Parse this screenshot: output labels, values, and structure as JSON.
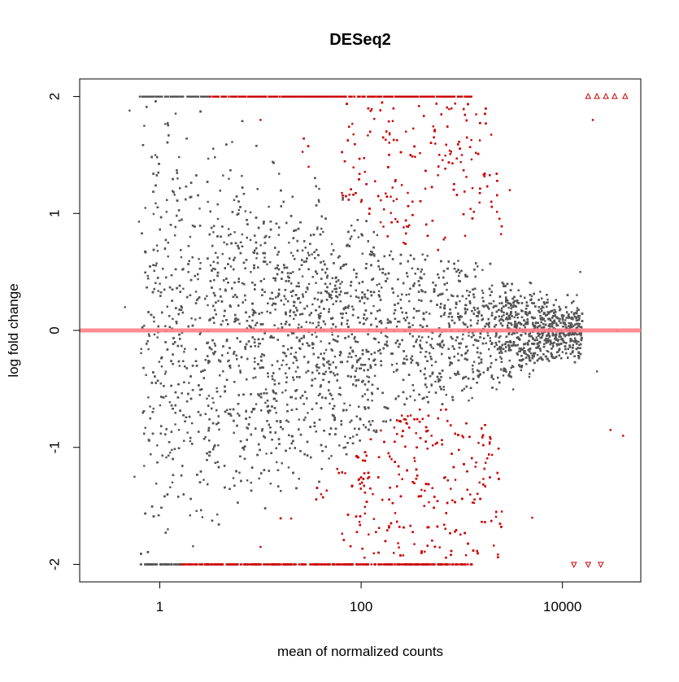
{
  "chart_data": {
    "type": "scatter",
    "title": "DESeq2",
    "xlabel": "mean of normalized counts",
    "ylabel": "log fold change",
    "x_scale": "log10",
    "xlim": [
      0.16,
      60000
    ],
    "ylim": [
      -2.15,
      2.15
    ],
    "x_ticks": [
      {
        "value": 1,
        "label": "1"
      },
      {
        "value": 100,
        "label": "100"
      },
      {
        "value": 10000,
        "label": "10000"
      }
    ],
    "y_ticks": [
      {
        "value": -2,
        "label": "-2"
      },
      {
        "value": -1,
        "label": "-1"
      },
      {
        "value": 0,
        "label": "0"
      },
      {
        "value": 1,
        "label": "1"
      },
      {
        "value": 2,
        "label": "2"
      }
    ],
    "reference_line": {
      "y": 0,
      "color": "#ff7f88"
    },
    "grid": false,
    "legend": "none",
    "colors": {
      "not_significant": "#555555",
      "significant": "#cc0000"
    },
    "series": [
      {
        "values": [
          {
            "x": 0.45,
            "y": 0.2
          },
          {
            "x": 0.5,
            "y": 1.88
          },
          {
            "x": 0.56,
            "y": -1.25
          },
          {
            "x": 0.62,
            "y": 0.93
          },
          {
            "x": 0.7,
            "y": 1.75
          },
          {
            "x": 0.8,
            "y": -0.65
          },
          {
            "x": 0.9,
            "y": 1.5
          },
          {
            "x": 1.0,
            "y": 0.4
          },
          {
            "x": 1.2,
            "y": -1.7
          },
          {
            "x": 1.5,
            "y": 1.3
          },
          {
            "x": 2.0,
            "y": 0.8
          },
          {
            "x": 3.0,
            "y": 1.1
          },
          {
            "x": 5.0,
            "y": -0.3
          },
          {
            "x": 8.0,
            "y": 0.5
          },
          {
            "x": 20.0,
            "y": -0.2
          },
          {
            "x": 50.0,
            "y": 0.3
          },
          {
            "x": 120.0,
            "y": -0.4
          },
          {
            "x": 300.0,
            "y": 0.25
          },
          {
            "x": 700.0,
            "y": -0.55
          },
          {
            "x": 2000.0,
            "y": 0.15
          },
          {
            "x": 6000.0,
            "y": -0.1
          },
          {
            "x": 15000.0,
            "y": 0.5
          },
          {
            "x": 22000.0,
            "y": -0.35
          },
          {
            "x": 35000.0,
            "y": 0.0
          }
        ]
      },
      {
        "values": [
          {
            "x": 10.0,
            "y": 1.8
          },
          {
            "x": 30.0,
            "y": 1.4
          },
          {
            "x": 100.0,
            "y": 1.1
          },
          {
            "x": 300.0,
            "y": 0.9
          },
          {
            "x": 1000.0,
            "y": 1.5
          },
          {
            "x": 3000.0,
            "y": 1.2
          },
          {
            "x": 10.0,
            "y": -1.85
          },
          {
            "x": 40.0,
            "y": -1.4
          },
          {
            "x": 200.0,
            "y": -1.1
          },
          {
            "x": 500.0,
            "y": -0.9
          },
          {
            "x": 1500.0,
            "y": -1.3
          },
          {
            "x": 5000.0,
            "y": -1.6
          },
          {
            "x": 20000.0,
            "y": 1.8
          },
          {
            "x": 30000.0,
            "y": -0.85
          },
          {
            "x": 40000.0,
            "y": -0.9
          }
        ]
      }
    ],
    "clipped_points": {
      "up": [
        {
          "x": 18000
        },
        {
          "x": 22000
        },
        {
          "x": 27000
        },
        {
          "x": 33000
        },
        {
          "x": 42000
        }
      ],
      "down": [
        {
          "x": 13000
        },
        {
          "x": 18000
        },
        {
          "x": 24000
        }
      ]
    }
  }
}
